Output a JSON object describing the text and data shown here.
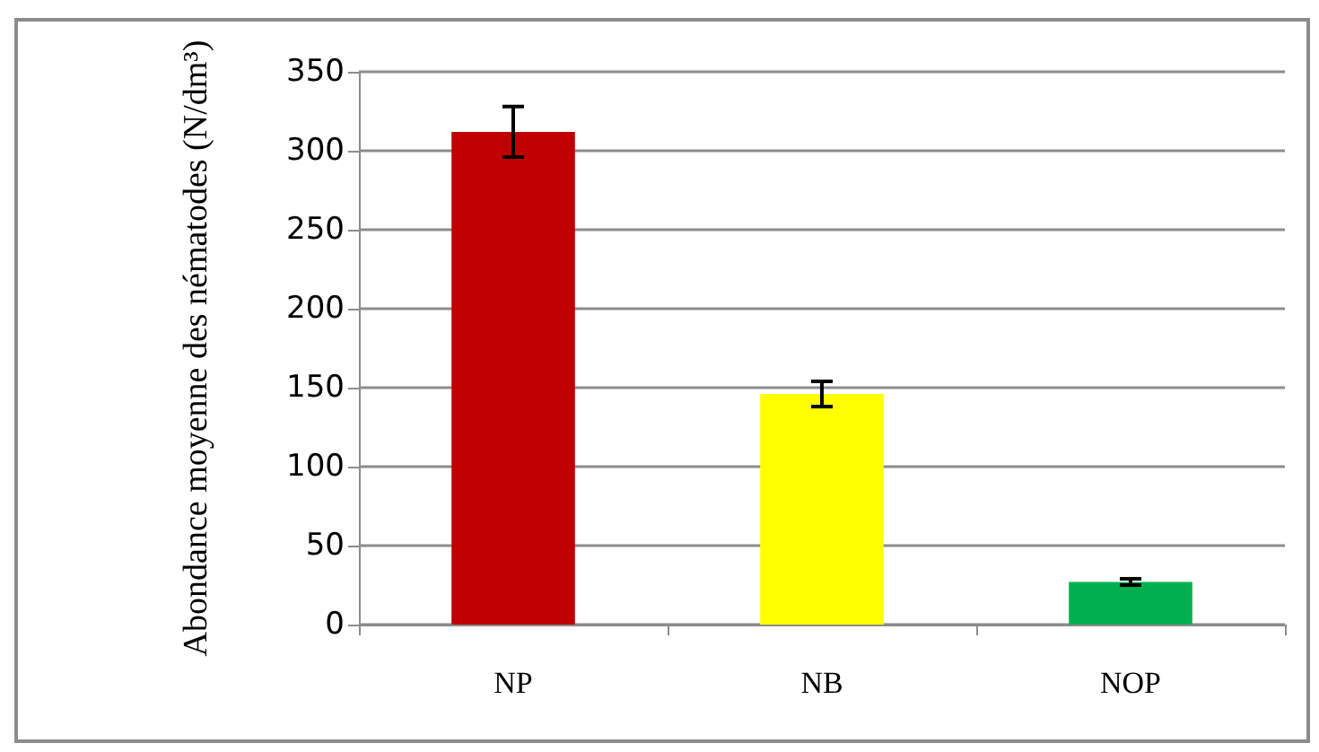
{
  "chart_data": {
    "type": "bar",
    "ylabel": "Abondance moyenne des nématodes (N/dm³)",
    "categories": [
      "NP",
      "NB",
      "NOP"
    ],
    "values": [
      312,
      146,
      27
    ],
    "colors": [
      "#c00000",
      "#ffff00",
      "#00b050"
    ],
    "errors": [
      16,
      8,
      2
    ],
    "ylim": [
      0,
      350
    ],
    "yticks": [
      0,
      50,
      100,
      150,
      200,
      250,
      300,
      350
    ],
    "grid": "y"
  }
}
